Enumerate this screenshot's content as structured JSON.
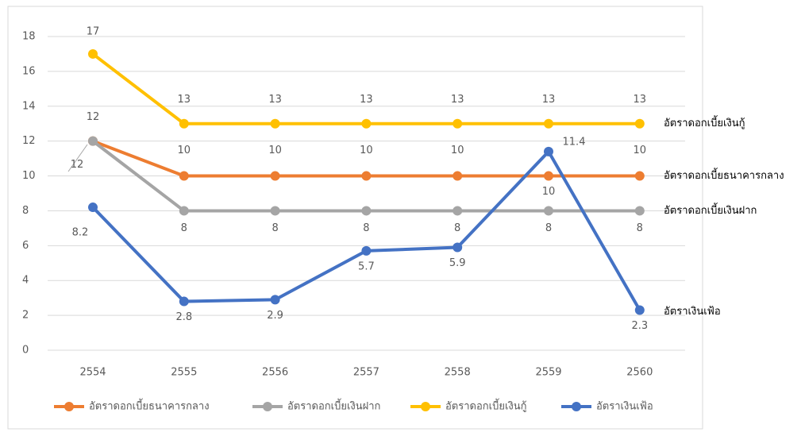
{
  "chart_data": {
    "type": "line",
    "categories": [
      "2554",
      "2555",
      "2556",
      "2557",
      "2558",
      "2559",
      "2560"
    ],
    "series": [
      {
        "name": "อัตราดอกเบี้ยธนาคารกลาง",
        "color": "#ed7d31",
        "values": [
          12,
          10,
          10,
          10,
          10,
          10,
          10
        ]
      },
      {
        "name": "อัตราดอกเบี้ยเงินฝาก",
        "color": "#a5a5a5",
        "values": [
          12,
          8,
          8,
          8,
          8,
          8,
          8
        ]
      },
      {
        "name": "อัตราดอกเบี้ยเงินกู้",
        "color": "#ffc000",
        "values": [
          17,
          13,
          13,
          13,
          13,
          13,
          13
        ]
      },
      {
        "name": "อัตราเงินเฟ้อ",
        "color": "#4472c4",
        "values": [
          8.2,
          2.8,
          2.9,
          5.7,
          5.9,
          11.4,
          2.3
        ]
      }
    ],
    "ylim": [
      0,
      18
    ],
    "yticks": [
      0,
      2,
      4,
      6,
      8,
      10,
      12,
      14,
      16,
      18
    ],
    "grid": true,
    "legend": "bottom"
  }
}
